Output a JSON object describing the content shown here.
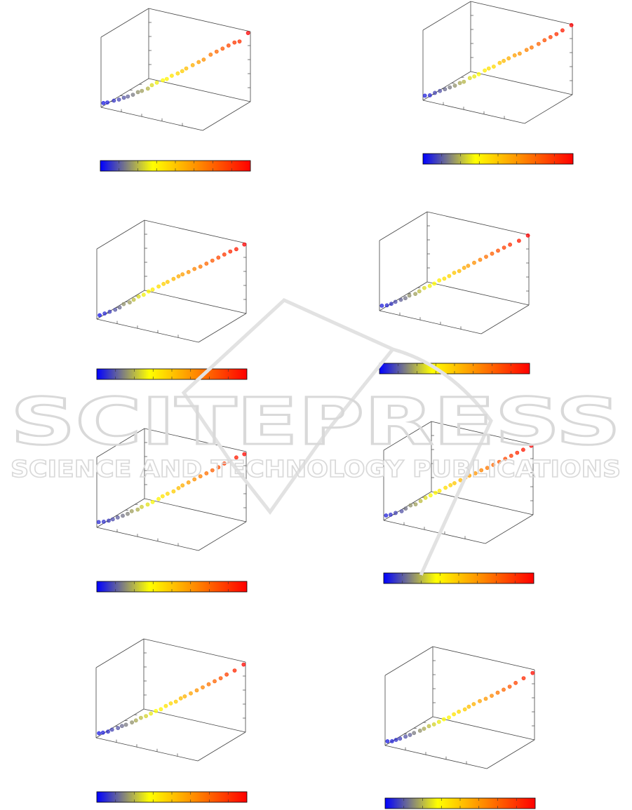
{
  "figure": {
    "background": "#ffffff"
  },
  "watermark": {
    "brand": "SCITEPRESS",
    "tagline": "SCIENCE AND TECHNOLOGY PUBLICATIONS",
    "color": "#d9d9d9"
  },
  "colorbar": {
    "colors": [
      "#0000ff",
      "#ffff00",
      "#ff8c00",
      "#ff0000"
    ],
    "text": ""
  },
  "chart_data": [
    {
      "type": "scatter3d",
      "title": "",
      "points": [
        [
          0,
          0.05,
          0.04
        ],
        [
          0.03,
          0.07,
          0.05
        ],
        [
          0.08,
          0.1,
          0.08
        ],
        [
          0.12,
          0.12,
          0.1
        ],
        [
          0.15,
          0.16,
          0.12
        ],
        [
          0.18,
          0.18,
          0.14
        ],
        [
          0.22,
          0.2,
          0.17
        ],
        [
          0.25,
          0.24,
          0.2
        ],
        [
          0.28,
          0.26,
          0.22
        ],
        [
          0.32,
          0.3,
          0.25
        ],
        [
          0.35,
          0.32,
          0.3
        ],
        [
          0.38,
          0.36,
          0.33
        ],
        [
          0.42,
          0.4,
          0.36
        ],
        [
          0.45,
          0.42,
          0.38
        ],
        [
          0.48,
          0.46,
          0.42
        ],
        [
          0.52,
          0.5,
          0.45
        ],
        [
          0.55,
          0.53,
          0.48
        ],
        [
          0.58,
          0.55,
          0.52
        ],
        [
          0.62,
          0.6,
          0.56
        ],
        [
          0.66,
          0.64,
          0.6
        ],
        [
          0.7,
          0.66,
          0.64
        ],
        [
          0.74,
          0.72,
          0.7
        ],
        [
          0.78,
          0.76,
          0.74
        ],
        [
          0.82,
          0.8,
          0.78
        ],
        [
          0.86,
          0.84,
          0.82
        ],
        [
          0.9,
          0.88,
          0.86
        ],
        [
          0.94,
          0.9,
          0.88
        ],
        [
          1,
          0.95,
          1
        ]
      ]
    },
    {
      "type": "scatter3d",
      "title": "",
      "points": [
        [
          0,
          0.04,
          0.05
        ],
        [
          0.04,
          0.06,
          0.06
        ],
        [
          0.08,
          0.08,
          0.1
        ],
        [
          0.11,
          0.12,
          0.12
        ],
        [
          0.15,
          0.14,
          0.15
        ],
        [
          0.18,
          0.18,
          0.17
        ],
        [
          0.22,
          0.2,
          0.2
        ],
        [
          0.25,
          0.24,
          0.23
        ],
        [
          0.28,
          0.26,
          0.25
        ],
        [
          0.32,
          0.3,
          0.3
        ],
        [
          0.35,
          0.33,
          0.32
        ],
        [
          0.38,
          0.36,
          0.35
        ],
        [
          0.42,
          0.4,
          0.4
        ],
        [
          0.45,
          0.42,
          0.43
        ],
        [
          0.48,
          0.46,
          0.45
        ],
        [
          0.52,
          0.5,
          0.5
        ],
        [
          0.55,
          0.52,
          0.53
        ],
        [
          0.58,
          0.56,
          0.56
        ],
        [
          0.62,
          0.6,
          0.6
        ],
        [
          0.66,
          0.62,
          0.63
        ],
        [
          0.7,
          0.68,
          0.67
        ],
        [
          0.74,
          0.7,
          0.71
        ],
        [
          0.78,
          0.76,
          0.75
        ],
        [
          0.82,
          0.8,
          0.8
        ],
        [
          0.86,
          0.84,
          0.84
        ],
        [
          0.9,
          0.88,
          0.88
        ],
        [
          0.94,
          0.92,
          0.93
        ],
        [
          1,
          0.98,
          1
        ]
      ]
    },
    {
      "type": "scatter3d",
      "title": "",
      "points": [
        [
          0,
          0.06,
          0.03
        ],
        [
          0.04,
          0.08,
          0.06
        ],
        [
          0.08,
          0.1,
          0.09
        ],
        [
          0.12,
          0.13,
          0.12
        ],
        [
          0.15,
          0.16,
          0.15
        ],
        [
          0.18,
          0.18,
          0.2
        ],
        [
          0.22,
          0.22,
          0.22
        ],
        [
          0.25,
          0.24,
          0.26
        ],
        [
          0.28,
          0.28,
          0.3
        ],
        [
          0.32,
          0.3,
          0.33
        ],
        [
          0.35,
          0.34,
          0.37
        ],
        [
          0.38,
          0.36,
          0.4
        ],
        [
          0.42,
          0.4,
          0.44
        ],
        [
          0.45,
          0.44,
          0.47
        ],
        [
          0.48,
          0.46,
          0.5
        ],
        [
          0.52,
          0.5,
          0.54
        ],
        [
          0.55,
          0.54,
          0.57
        ],
        [
          0.58,
          0.56,
          0.6
        ],
        [
          0.62,
          0.6,
          0.63
        ],
        [
          0.66,
          0.64,
          0.67
        ],
        [
          0.7,
          0.68,
          0.7
        ],
        [
          0.74,
          0.72,
          0.74
        ],
        [
          0.78,
          0.76,
          0.78
        ],
        [
          0.82,
          0.8,
          0.82
        ],
        [
          0.86,
          0.84,
          0.86
        ],
        [
          0.9,
          0.88,
          0.9
        ],
        [
          0.94,
          0.92,
          0.93
        ],
        [
          1,
          0.96,
          1
        ]
      ]
    },
    {
      "type": "scatter3d",
      "title": "",
      "points": [
        [
          0,
          0.05,
          0.05
        ],
        [
          0.04,
          0.07,
          0.06
        ],
        [
          0.07,
          0.1,
          0.08
        ],
        [
          0.1,
          0.12,
          0.11
        ],
        [
          0.14,
          0.15,
          0.14
        ],
        [
          0.17,
          0.18,
          0.16
        ],
        [
          0.2,
          0.2,
          0.2
        ],
        [
          0.24,
          0.24,
          0.22
        ],
        [
          0.27,
          0.26,
          0.26
        ],
        [
          0.3,
          0.3,
          0.3
        ],
        [
          0.34,
          0.33,
          0.33
        ],
        [
          0.37,
          0.36,
          0.36
        ],
        [
          0.4,
          0.4,
          0.4
        ],
        [
          0.44,
          0.42,
          0.43
        ],
        [
          0.47,
          0.46,
          0.46
        ],
        [
          0.5,
          0.5,
          0.5
        ],
        [
          0.54,
          0.52,
          0.53
        ],
        [
          0.57,
          0.56,
          0.57
        ],
        [
          0.6,
          0.58,
          0.6
        ],
        [
          0.64,
          0.62,
          0.64
        ],
        [
          0.68,
          0.66,
          0.68
        ],
        [
          0.72,
          0.7,
          0.72
        ],
        [
          0.76,
          0.74,
          0.76
        ],
        [
          0.8,
          0.78,
          0.8
        ],
        [
          0.84,
          0.82,
          0.84
        ],
        [
          0.88,
          0.86,
          0.88
        ],
        [
          0.94,
          0.92,
          0.93
        ],
        [
          1,
          0.98,
          1
        ]
      ]
    },
    {
      "type": "scatter3d",
      "title": "",
      "points": [
        [
          0,
          0.04,
          0.06
        ],
        [
          0.04,
          0.06,
          0.07
        ],
        [
          0.08,
          0.08,
          0.09
        ],
        [
          0.11,
          0.1,
          0.11
        ],
        [
          0.14,
          0.14,
          0.13
        ],
        [
          0.18,
          0.16,
          0.16
        ],
        [
          0.21,
          0.2,
          0.18
        ],
        [
          0.24,
          0.22,
          0.22
        ],
        [
          0.28,
          0.26,
          0.24
        ],
        [
          0.31,
          0.28,
          0.28
        ],
        [
          0.35,
          0.32,
          0.31
        ],
        [
          0.38,
          0.36,
          0.34
        ],
        [
          0.42,
          0.4,
          0.38
        ],
        [
          0.45,
          0.42,
          0.42
        ],
        [
          0.48,
          0.46,
          0.45
        ],
        [
          0.52,
          0.5,
          0.48
        ],
        [
          0.55,
          0.54,
          0.52
        ],
        [
          0.58,
          0.56,
          0.56
        ],
        [
          0.62,
          0.6,
          0.6
        ],
        [
          0.66,
          0.64,
          0.64
        ],
        [
          0.7,
          0.68,
          0.68
        ],
        [
          0.74,
          0.72,
          0.72
        ],
        [
          0.78,
          0.76,
          0.76
        ],
        [
          0.82,
          0.8,
          0.8
        ],
        [
          0.86,
          0.84,
          0.85
        ],
        [
          0.9,
          0.88,
          0.88
        ],
        [
          0.94,
          0.92,
          0.93
        ],
        [
          1,
          0.96,
          0.98
        ]
      ]
    },
    {
      "type": "scatter3d",
      "title": "",
      "points": [
        [
          0,
          0.05,
          0.05
        ],
        [
          0.04,
          0.06,
          0.07
        ],
        [
          0.08,
          0.08,
          0.1
        ],
        [
          0.12,
          0.12,
          0.12
        ],
        [
          0.15,
          0.14,
          0.16
        ],
        [
          0.18,
          0.18,
          0.2
        ],
        [
          0.22,
          0.2,
          0.22
        ],
        [
          0.25,
          0.24,
          0.26
        ],
        [
          0.28,
          0.28,
          0.3
        ],
        [
          0.32,
          0.3,
          0.34
        ],
        [
          0.35,
          0.34,
          0.37
        ],
        [
          0.38,
          0.36,
          0.4
        ],
        [
          0.42,
          0.4,
          0.44
        ],
        [
          0.45,
          0.44,
          0.47
        ],
        [
          0.48,
          0.46,
          0.5
        ],
        [
          0.52,
          0.5,
          0.54
        ],
        [
          0.55,
          0.54,
          0.57
        ],
        [
          0.58,
          0.56,
          0.6
        ],
        [
          0.62,
          0.6,
          0.63
        ],
        [
          0.66,
          0.64,
          0.67
        ],
        [
          0.7,
          0.68,
          0.7
        ],
        [
          0.74,
          0.72,
          0.74
        ],
        [
          0.78,
          0.76,
          0.78
        ],
        [
          0.82,
          0.8,
          0.82
        ],
        [
          0.86,
          0.84,
          0.86
        ],
        [
          0.9,
          0.88,
          0.9
        ],
        [
          0.94,
          0.92,
          0.94
        ],
        [
          1,
          0.96,
          1
        ]
      ]
    },
    {
      "type": "scatter3d",
      "title": "",
      "points": [
        [
          0,
          0.06,
          0.04
        ],
        [
          0.03,
          0.08,
          0.05
        ],
        [
          0.07,
          0.1,
          0.07
        ],
        [
          0.1,
          0.12,
          0.1
        ],
        [
          0.14,
          0.16,
          0.12
        ],
        [
          0.17,
          0.18,
          0.15
        ],
        [
          0.2,
          0.2,
          0.17
        ],
        [
          0.24,
          0.24,
          0.2
        ],
        [
          0.27,
          0.26,
          0.23
        ],
        [
          0.3,
          0.3,
          0.26
        ],
        [
          0.34,
          0.32,
          0.29
        ],
        [
          0.37,
          0.36,
          0.32
        ],
        [
          0.4,
          0.4,
          0.35
        ],
        [
          0.44,
          0.42,
          0.38
        ],
        [
          0.47,
          0.46,
          0.42
        ],
        [
          0.5,
          0.5,
          0.45
        ],
        [
          0.54,
          0.52,
          0.48
        ],
        [
          0.57,
          0.56,
          0.52
        ],
        [
          0.6,
          0.58,
          0.55
        ],
        [
          0.64,
          0.62,
          0.59
        ],
        [
          0.68,
          0.66,
          0.63
        ],
        [
          0.72,
          0.7,
          0.67
        ],
        [
          0.76,
          0.74,
          0.71
        ],
        [
          0.8,
          0.78,
          0.75
        ],
        [
          0.84,
          0.82,
          0.79
        ],
        [
          0.88,
          0.86,
          0.84
        ],
        [
          0.94,
          0.9,
          0.9
        ],
        [
          1,
          0.96,
          0.98
        ]
      ]
    },
    {
      "type": "scatter3d",
      "title": "",
      "points": [
        [
          0,
          0.05,
          0.04
        ],
        [
          0.04,
          0.06,
          0.05
        ],
        [
          0.07,
          0.08,
          0.07
        ],
        [
          0.1,
          0.1,
          0.09
        ],
        [
          0.14,
          0.13,
          0.12
        ],
        [
          0.17,
          0.16,
          0.14
        ],
        [
          0.2,
          0.18,
          0.17
        ],
        [
          0.24,
          0.22,
          0.2
        ],
        [
          0.27,
          0.24,
          0.23
        ],
        [
          0.3,
          0.28,
          0.26
        ],
        [
          0.34,
          0.3,
          0.29
        ],
        [
          0.37,
          0.34,
          0.32
        ],
        [
          0.4,
          0.38,
          0.35
        ],
        [
          0.44,
          0.4,
          0.38
        ],
        [
          0.47,
          0.44,
          0.42
        ],
        [
          0.5,
          0.48,
          0.45
        ],
        [
          0.54,
          0.52,
          0.48
        ],
        [
          0.57,
          0.54,
          0.52
        ],
        [
          0.6,
          0.58,
          0.55
        ],
        [
          0.64,
          0.62,
          0.59
        ],
        [
          0.68,
          0.66,
          0.62
        ],
        [
          0.72,
          0.7,
          0.66
        ],
        [
          0.76,
          0.74,
          0.7
        ],
        [
          0.8,
          0.78,
          0.74
        ],
        [
          0.84,
          0.82,
          0.78
        ],
        [
          0.88,
          0.86,
          0.83
        ],
        [
          0.94,
          0.9,
          0.9
        ],
        [
          1,
          0.96,
          0.97
        ]
      ]
    }
  ]
}
